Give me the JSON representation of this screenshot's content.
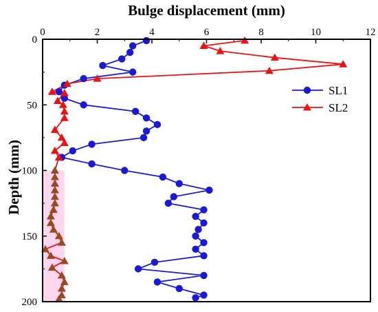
{
  "chart_data": {
    "type": "line",
    "title": "",
    "xlabel": "Bulge displacement (mm)",
    "ylabel": "Depth (mm)",
    "x_axis_position": "top",
    "y_axis_inverted": true,
    "xlim": [
      0,
      12
    ],
    "ylim": [
      0,
      200
    ],
    "xticks": [
      "0",
      "2",
      "4",
      "6",
      "8",
      "10",
      "12"
    ],
    "yticks": [
      "0",
      "50",
      "100",
      "150",
      "200"
    ],
    "legend_position": "right",
    "grid": false,
    "colors": {
      "axis": "#000000",
      "shaded_band": "#ffd6f0"
    },
    "shaded_band": {
      "x": [
        0,
        0.8
      ],
      "y": [
        100,
        200
      ]
    },
    "series": [
      {
        "name": "SL1",
        "color": "#1a1ad6",
        "marker": "circle",
        "points": [
          [
            3.8,
            1
          ],
          [
            3.3,
            5
          ],
          [
            3.2,
            10
          ],
          [
            2.9,
            15
          ],
          [
            2.2,
            20
          ],
          [
            3.3,
            25
          ],
          [
            1.5,
            30
          ],
          [
            0.8,
            35
          ],
          [
            0.6,
            40
          ],
          [
            0.8,
            45
          ],
          [
            1.5,
            50
          ],
          [
            3.4,
            55
          ],
          [
            3.8,
            60
          ],
          [
            4.2,
            65
          ],
          [
            3.8,
            70
          ],
          [
            3.7,
            75
          ],
          [
            1.8,
            80
          ],
          [
            1.1,
            85
          ],
          [
            0.7,
            90
          ],
          [
            1.8,
            95
          ],
          [
            3.0,
            100
          ],
          [
            4.4,
            105
          ],
          [
            5.0,
            110
          ],
          [
            6.1,
            115
          ],
          [
            4.8,
            120
          ],
          [
            4.6,
            125
          ],
          [
            5.9,
            130
          ],
          [
            5.6,
            135
          ],
          [
            5.9,
            140
          ],
          [
            5.7,
            145
          ],
          [
            5.6,
            150
          ],
          [
            5.9,
            155
          ],
          [
            5.6,
            160
          ],
          [
            5.9,
            165
          ],
          [
            4.1,
            170
          ],
          [
            3.5,
            175
          ],
          [
            5.9,
            180
          ],
          [
            4.2,
            185
          ],
          [
            5.0,
            190
          ],
          [
            5.9,
            195
          ],
          [
            5.6,
            197
          ]
        ]
      },
      {
        "name": "SL2",
        "color": "#ee1111",
        "marker": "triangle",
        "points": [
          [
            7.4,
            1
          ],
          [
            5.9,
            5
          ],
          [
            6.5,
            9
          ],
          [
            8.5,
            14
          ],
          [
            11.0,
            19
          ],
          [
            8.3,
            24
          ],
          [
            2.0,
            30
          ],
          [
            0.9,
            34
          ],
          [
            0.35,
            40
          ],
          [
            0.8,
            41
          ],
          [
            0.55,
            47
          ],
          [
            0.75,
            50
          ],
          [
            0.8,
            55
          ],
          [
            0.8,
            60
          ],
          [
            0.45,
            69
          ],
          [
            0.7,
            75
          ],
          [
            0.8,
            79
          ],
          [
            0.45,
            85
          ],
          [
            0.6,
            90
          ],
          [
            0.45,
            100
          ],
          [
            0.45,
            105
          ],
          [
            0.45,
            110
          ],
          [
            0.45,
            115
          ],
          [
            0.45,
            120
          ],
          [
            0.45,
            125
          ],
          [
            0.4,
            130
          ],
          [
            0.3,
            135
          ],
          [
            0.3,
            140
          ],
          [
            0.4,
            145
          ],
          [
            0.6,
            150
          ],
          [
            0.7,
            155
          ],
          [
            0.1,
            160
          ],
          [
            0.3,
            165
          ],
          [
            0.8,
            169
          ],
          [
            0.35,
            174
          ],
          [
            0.7,
            180
          ],
          [
            0.8,
            185
          ],
          [
            0.7,
            190
          ],
          [
            0.7,
            195
          ],
          [
            0.6,
            198
          ]
        ]
      }
    ]
  }
}
